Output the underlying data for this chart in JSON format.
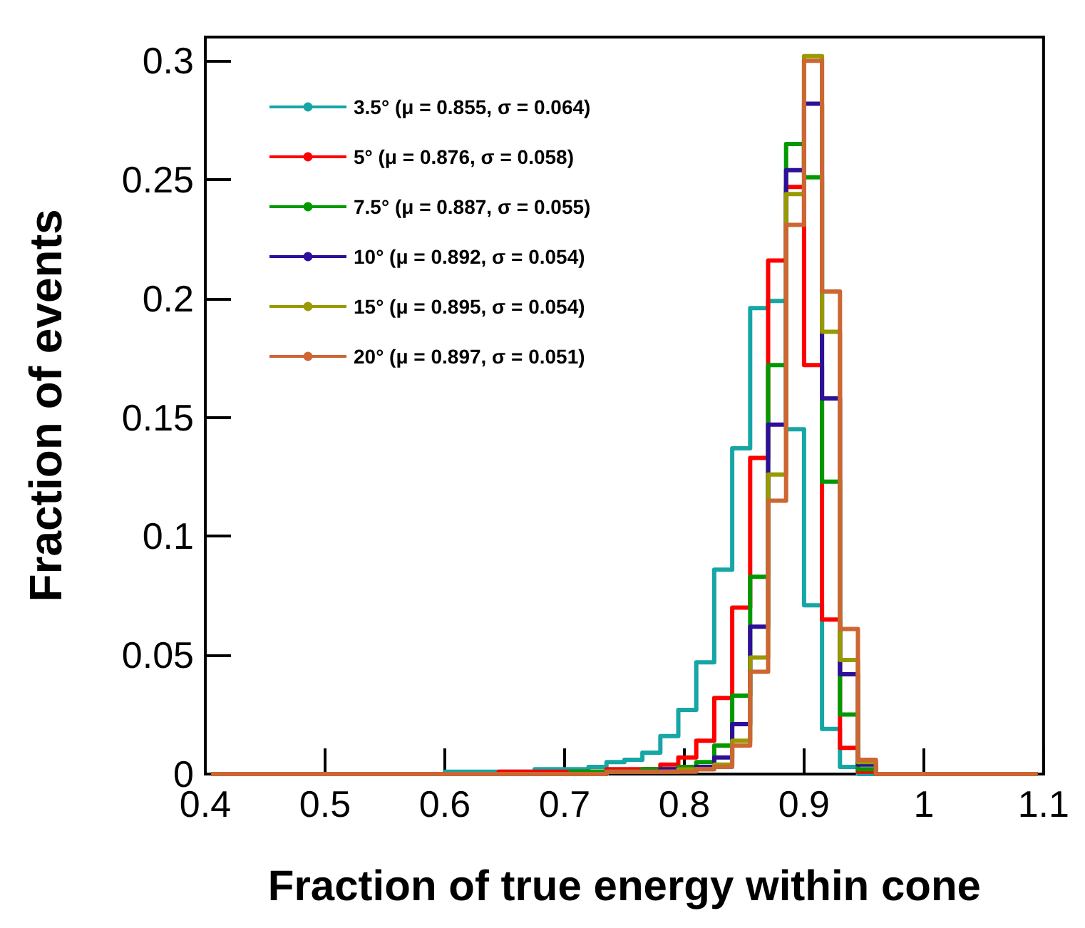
{
  "chart_data": {
    "type": "histogram",
    "xlabel": "Fraction of true energy within cone",
    "ylabel": "Fraction of events",
    "bins": [
      0.405,
      0.42,
      0.435,
      0.45,
      0.465,
      0.48,
      0.495,
      0.51,
      0.525,
      0.54,
      0.555,
      0.57,
      0.585,
      0.6,
      0.615,
      0.63,
      0.645,
      0.66,
      0.675,
      0.69,
      0.705,
      0.72,
      0.735,
      0.75,
      0.765,
      0.78,
      0.795,
      0.81,
      0.825,
      0.84,
      0.855,
      0.87,
      0.885,
      0.9,
      0.915,
      0.93,
      0.945,
      0.96,
      0.975,
      0.99,
      1.005,
      1.02,
      1.035,
      1.05,
      1.065,
      1.08,
      1.095
    ],
    "series": [
      {
        "name": "3.5° (μ = 0.855, σ = 0.064)",
        "color": "#16a6a6",
        "values": [
          0,
          0,
          0,
          0,
          0,
          0,
          0,
          0,
          0,
          0,
          0,
          0,
          0,
          0.001,
          0.001,
          0.001,
          0.001,
          0.001,
          0.002,
          0.002,
          0.002,
          0.003,
          0.005,
          0.006,
          0.009,
          0.016,
          0.027,
          0.047,
          0.086,
          0.137,
          0.196,
          0.199,
          0.145,
          0.071,
          0.019,
          0.003,
          0,
          0,
          0,
          0,
          0,
          0,
          0,
          0,
          0,
          0
        ]
      },
      {
        "name": "5° (μ = 0.876, σ = 0.058)",
        "color": "#ff0000",
        "values": [
          0,
          0,
          0,
          0,
          0,
          0,
          0,
          0,
          0,
          0,
          0,
          0,
          0,
          0,
          0,
          0,
          0.001,
          0.001,
          0.001,
          0.001,
          0.001,
          0.001,
          0.002,
          0.002,
          0.002,
          0.004,
          0.007,
          0.014,
          0.032,
          0.07,
          0.133,
          0.216,
          0.247,
          0.172,
          0.065,
          0.011,
          0.001,
          0,
          0,
          0,
          0,
          0,
          0,
          0,
          0,
          0
        ]
      },
      {
        "name": "7.5° (μ = 0.887, σ = 0.055)",
        "color": "#009900",
        "values": [
          0,
          0,
          0,
          0,
          0,
          0,
          0,
          0,
          0,
          0,
          0,
          0,
          0,
          0,
          0,
          0,
          0,
          0,
          0,
          0,
          0.001,
          0.001,
          0.001,
          0.001,
          0.002,
          0.002,
          0.003,
          0.005,
          0.012,
          0.033,
          0.083,
          0.172,
          0.265,
          0.251,
          0.123,
          0.025,
          0.002,
          0,
          0,
          0,
          0,
          0,
          0,
          0,
          0,
          0
        ]
      },
      {
        "name": "10° (μ = 0.892, σ = 0.054)",
        "color": "#2e0f99",
        "values": [
          0,
          0,
          0,
          0,
          0,
          0,
          0,
          0,
          0,
          0,
          0,
          0,
          0,
          0,
          0,
          0,
          0,
          0,
          0,
          0,
          0,
          0,
          0.001,
          0.001,
          0.001,
          0.002,
          0.002,
          0.003,
          0.007,
          0.021,
          0.062,
          0.147,
          0.254,
          0.282,
          0.158,
          0.042,
          0.004,
          0,
          0,
          0,
          0,
          0,
          0,
          0,
          0,
          0
        ]
      },
      {
        "name": "15° (μ = 0.895, σ = 0.054)",
        "color": "#999900",
        "values": [
          0,
          0,
          0,
          0,
          0,
          0,
          0,
          0,
          0,
          0,
          0,
          0,
          0,
          0,
          0,
          0,
          0,
          0,
          0,
          0,
          0,
          0,
          0.001,
          0.001,
          0.001,
          0.001,
          0.002,
          0.002,
          0.004,
          0.014,
          0.049,
          0.126,
          0.244,
          0.302,
          0.186,
          0.048,
          0.005,
          0,
          0,
          0,
          0,
          0,
          0,
          0,
          0,
          0
        ]
      },
      {
        "name": "20° (μ = 0.897, σ = 0.051)",
        "color": "#cc6633",
        "values": [
          0,
          0,
          0,
          0,
          0,
          0,
          0,
          0,
          0,
          0,
          0,
          0,
          0,
          0,
          0,
          0,
          0,
          0,
          0,
          0,
          0,
          0,
          0.001,
          0.001,
          0.001,
          0.001,
          0.001,
          0.002,
          0.003,
          0.012,
          0.043,
          0.115,
          0.231,
          0.3,
          0.203,
          0.061,
          0.006,
          0,
          0,
          0,
          0,
          0,
          0,
          0,
          0,
          0
        ]
      }
    ],
    "xlim": [
      0.4,
      1.1
    ],
    "xticks": [
      0.4,
      0.5,
      0.6,
      0.7,
      0.8,
      0.9,
      1,
      1.1
    ],
    "ylim": [
      0,
      0.31
    ],
    "yticks": [
      0,
      0.05,
      0.1,
      0.15,
      0.2,
      0.25,
      0.3
    ],
    "grid": false,
    "legend": "top left"
  }
}
